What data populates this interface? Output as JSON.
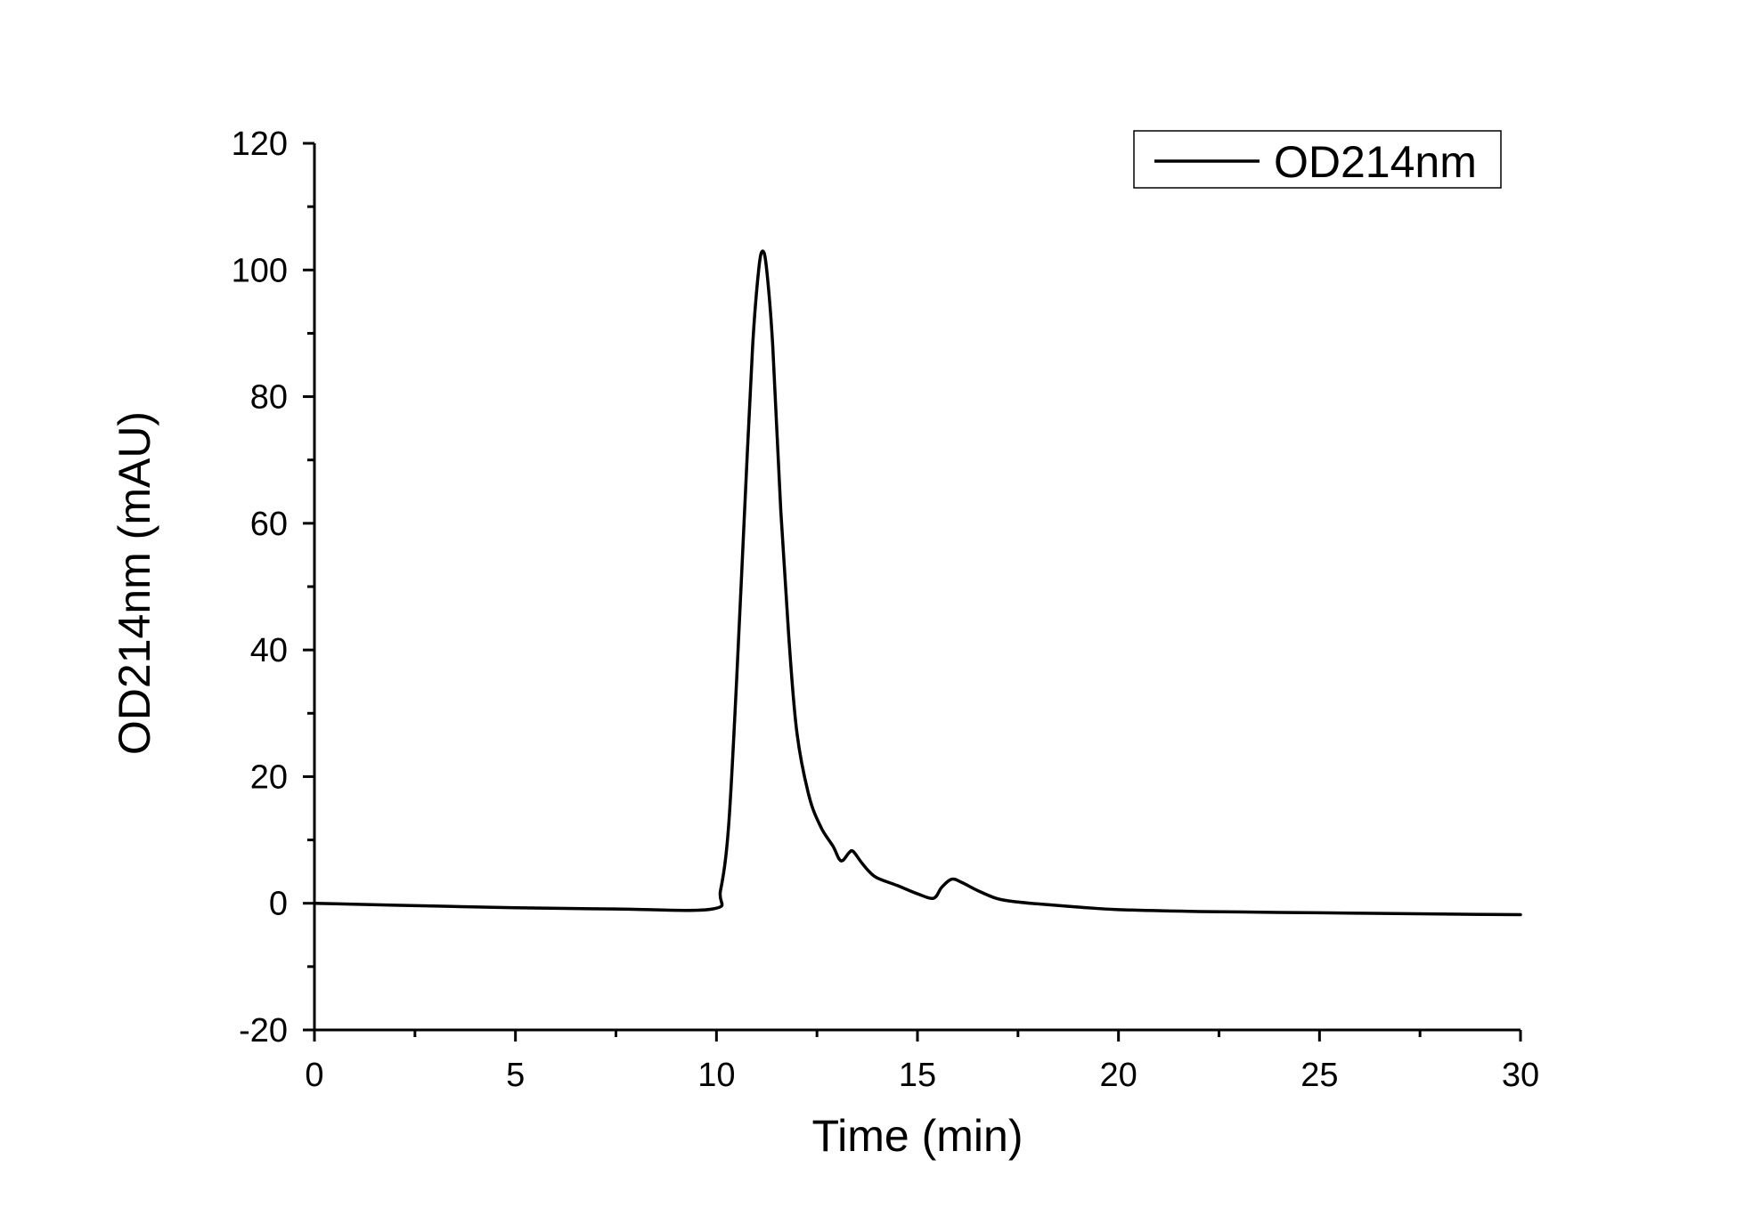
{
  "chart_data": {
    "type": "line",
    "xlabel": "Time (min)",
    "ylabel": "OD214nm (mAU)",
    "xlim": [
      0,
      30
    ],
    "ylim": [
      -20,
      120
    ],
    "x_ticks": [
      0,
      5,
      10,
      15,
      20,
      25,
      30
    ],
    "y_ticks": [
      -20,
      0,
      20,
      40,
      60,
      80,
      100,
      120
    ],
    "grid": false,
    "legend_position": "top-right",
    "line_color": "#000000",
    "series": [
      {
        "name": "OD214nm",
        "x": [
          0,
          2,
          5,
          7.5,
          9.9,
          10.1,
          10.3,
          10.5,
          10.7,
          10.9,
          11.05,
          11.15,
          11.25,
          11.4,
          11.6,
          11.8,
          12.0,
          12.3,
          12.6,
          12.9,
          13.05,
          13.15,
          13.3,
          13.4,
          13.6,
          13.8,
          14.0,
          14.5,
          15.0,
          15.4,
          15.6,
          15.85,
          16.1,
          16.5,
          17.0,
          17.5,
          18.0,
          19.0,
          20.0,
          22.0,
          25.0,
          28.0,
          30.0
        ],
        "y": [
          0,
          -0.3,
          -0.7,
          -0.9,
          -0.9,
          2,
          12,
          35,
          62,
          88,
          100,
          103,
          100,
          88,
          62,
          42,
          27,
          17,
          12,
          9,
          7,
          6.8,
          8,
          8.2,
          6.5,
          5,
          4,
          2.8,
          1.5,
          0.8,
          2.5,
          3.8,
          3.3,
          2,
          0.7,
          0.2,
          -0.1,
          -0.6,
          -1.0,
          -1.3,
          -1.5,
          -1.7,
          -1.8
        ]
      }
    ]
  }
}
